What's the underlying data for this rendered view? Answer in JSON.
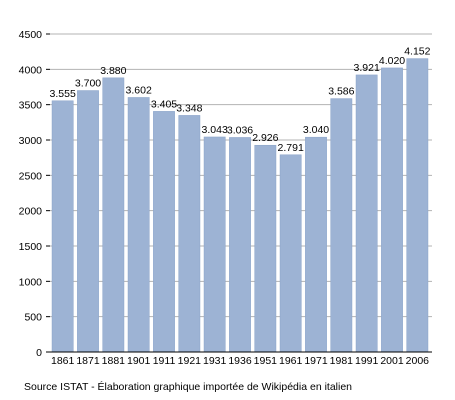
{
  "chart_data": {
    "type": "bar",
    "categories": [
      "1861",
      "1871",
      "1881",
      "1901",
      "1911",
      "1921",
      "1931",
      "1936",
      "1951",
      "1961",
      "1971",
      "1981",
      "1991",
      "2001",
      "2006"
    ],
    "values": [
      3555,
      3700,
      3880,
      3602,
      3405,
      3348,
      3043,
      3036,
      2926,
      2791,
      3040,
      3586,
      3921,
      4020,
      4152
    ],
    "value_labels": [
      "3.555",
      "3.700",
      "3.880",
      "3.602",
      "3.405",
      "3.348",
      "3.043",
      "3.036",
      "2.926",
      "2.791",
      "3.040",
      "3.586",
      "3.921",
      "4.020",
      "4.152"
    ],
    "ylim": [
      0,
      4500
    ],
    "yticks": [
      0,
      500,
      1000,
      1500,
      2000,
      2500,
      3000,
      3500,
      4000,
      4500
    ],
    "grid": true,
    "bar_color": "#9db3d4",
    "bar_edge_color": "#8aa3c8"
  },
  "source_note": "Source ISTAT - Élaboration graphique importée de Wikipédia en italien"
}
